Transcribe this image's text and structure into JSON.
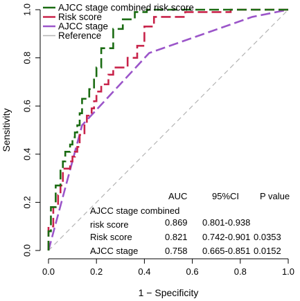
{
  "chart_data": {
    "type": "line",
    "xlabel": "1 − Specificity",
    "ylabel": "Sensitivity",
    "xlim": [
      0.0,
      1.0
    ],
    "ylim": [
      0.0,
      1.0
    ],
    "x_ticks": [
      "0.0",
      "0.2",
      "0.4",
      "0.6",
      "0.8",
      "1.0"
    ],
    "y_ticks": [
      "0.0",
      "0.2",
      "0.4",
      "0.6",
      "0.8",
      "1.0"
    ],
    "grid": false,
    "legend_position": "top-left",
    "series": [
      {
        "name": "AJCC stage combined risk score",
        "color": "#1a6b12",
        "points": [
          [
            0,
            0
          ],
          [
            0,
            0.08
          ],
          [
            0.01,
            0.08
          ],
          [
            0.01,
            0.18
          ],
          [
            0.03,
            0.18
          ],
          [
            0.03,
            0.27
          ],
          [
            0.05,
            0.27
          ],
          [
            0.05,
            0.34
          ],
          [
            0.06,
            0.34
          ],
          [
            0.06,
            0.37
          ],
          [
            0.07,
            0.37
          ],
          [
            0.07,
            0.41
          ],
          [
            0.09,
            0.41
          ],
          [
            0.09,
            0.44
          ],
          [
            0.1,
            0.44
          ],
          [
            0.1,
            0.47
          ],
          [
            0.11,
            0.47
          ],
          [
            0.11,
            0.49
          ],
          [
            0.12,
            0.49
          ],
          [
            0.12,
            0.52
          ],
          [
            0.13,
            0.52
          ],
          [
            0.13,
            0.57
          ],
          [
            0.14,
            0.57
          ],
          [
            0.14,
            0.63
          ],
          [
            0.17,
            0.63
          ],
          [
            0.17,
            0.67
          ],
          [
            0.19,
            0.67
          ],
          [
            0.19,
            0.71
          ],
          [
            0.2,
            0.71
          ],
          [
            0.2,
            0.76
          ],
          [
            0.22,
            0.76
          ],
          [
            0.22,
            0.84
          ],
          [
            0.27,
            0.84
          ],
          [
            0.27,
            0.92
          ],
          [
            0.31,
            0.92
          ],
          [
            0.31,
            0.96
          ],
          [
            0.36,
            0.96
          ],
          [
            0.36,
            0.99
          ],
          [
            0.41,
            0.99
          ],
          [
            0.41,
            1.0
          ],
          [
            1.0,
            1.0
          ]
        ]
      },
      {
        "name": "Risk score",
        "color": "#c8234a",
        "points": [
          [
            0,
            0
          ],
          [
            0,
            0.1
          ],
          [
            0.02,
            0.1
          ],
          [
            0.02,
            0.18
          ],
          [
            0.04,
            0.18
          ],
          [
            0.04,
            0.23
          ],
          [
            0.05,
            0.23
          ],
          [
            0.05,
            0.27
          ],
          [
            0.06,
            0.27
          ],
          [
            0.06,
            0.34
          ],
          [
            0.09,
            0.34
          ],
          [
            0.09,
            0.37
          ],
          [
            0.1,
            0.37
          ],
          [
            0.1,
            0.39
          ],
          [
            0.11,
            0.39
          ],
          [
            0.11,
            0.41
          ],
          [
            0.12,
            0.41
          ],
          [
            0.12,
            0.43
          ],
          [
            0.13,
            0.43
          ],
          [
            0.13,
            0.48
          ],
          [
            0.15,
            0.48
          ],
          [
            0.15,
            0.53
          ],
          [
            0.16,
            0.53
          ],
          [
            0.16,
            0.56
          ],
          [
            0.18,
            0.56
          ],
          [
            0.18,
            0.59
          ],
          [
            0.19,
            0.59
          ],
          [
            0.19,
            0.62
          ],
          [
            0.2,
            0.62
          ],
          [
            0.2,
            0.66
          ],
          [
            0.22,
            0.66
          ],
          [
            0.22,
            0.69
          ],
          [
            0.25,
            0.69
          ],
          [
            0.25,
            0.73
          ],
          [
            0.27,
            0.73
          ],
          [
            0.27,
            0.76
          ],
          [
            0.33,
            0.76
          ],
          [
            0.33,
            0.8
          ],
          [
            0.37,
            0.8
          ],
          [
            0.37,
            0.85
          ],
          [
            0.4,
            0.85
          ],
          [
            0.4,
            0.93
          ],
          [
            0.44,
            0.93
          ],
          [
            0.44,
            0.97
          ],
          [
            0.57,
            0.97
          ],
          [
            0.57,
            0.99
          ],
          [
            0.76,
            0.99
          ],
          [
            0.76,
            1.0
          ],
          [
            1.0,
            1.0
          ]
        ]
      },
      {
        "name": "AJCC stage",
        "color": "#9b55c9",
        "points": [
          [
            0,
            0
          ],
          [
            0.14,
            0.52
          ],
          [
            0.42,
            0.82
          ],
          [
            0.85,
            0.97
          ],
          [
            1.0,
            1.0
          ]
        ]
      },
      {
        "name": "Reference",
        "color": "#b4b4b4",
        "points": [
          [
            0,
            0
          ],
          [
            1,
            1
          ]
        ]
      }
    ],
    "table": {
      "headers": [
        "AUC",
        "95%CI",
        "P value"
      ],
      "rows": [
        {
          "label_line1": "AJCC stage combined",
          "label_line2": "risk score",
          "auc": "0.869",
          "ci": "0.801-0.938",
          "p": ""
        },
        {
          "label_line1": "Risk score",
          "label_line2": "",
          "auc": "0.821",
          "ci": "0.742-0.901",
          "p": "0.0353"
        },
        {
          "label_line1": "AJCC stage",
          "label_line2": "",
          "auc": "0.758",
          "ci": "0.665-0.851",
          "p": "0.0152"
        }
      ]
    }
  }
}
